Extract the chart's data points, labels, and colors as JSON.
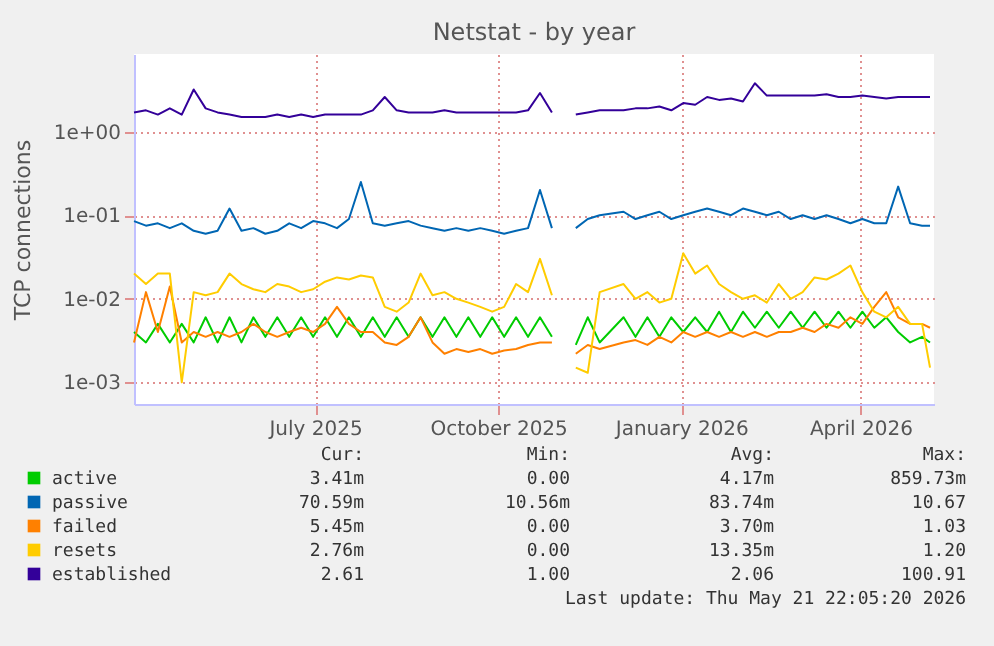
{
  "chart_data": {
    "type": "line",
    "title": "Netstat - by year",
    "ylabel": "TCP connections",
    "x": [
      "2025-04-01",
      "2025-04-07",
      "2025-04-13",
      "2025-04-19",
      "2025-04-25",
      "2025-05-01",
      "2025-05-07",
      "2025-05-13",
      "2025-05-19",
      "2025-05-25",
      "2025-05-31",
      "2025-06-06",
      "2025-06-12",
      "2025-06-18",
      "2025-06-24",
      "2025-06-30",
      "2025-07-06",
      "2025-07-12",
      "2025-07-18",
      "2025-07-24",
      "2025-07-30",
      "2025-08-05",
      "2025-08-11",
      "2025-08-17",
      "2025-08-23",
      "2025-08-29",
      "2025-09-04",
      "2025-09-10",
      "2025-09-16",
      "2025-09-22",
      "2025-09-28",
      "2025-10-04",
      "2025-10-10",
      "2025-10-16",
      "2025-10-22",
      "2025-10-28",
      "2025-11-03",
      "2025-11-09",
      "2025-11-15",
      "2025-11-21",
      "2025-12-03",
      "2025-12-09",
      "2025-12-15",
      "2025-12-21",
      "2025-12-27",
      "2026-01-02",
      "2026-01-08",
      "2026-01-14",
      "2026-01-20",
      "2026-01-26",
      "2026-02-01",
      "2026-02-07",
      "2026-02-13",
      "2026-02-19",
      "2026-02-25",
      "2026-03-03",
      "2026-03-09",
      "2026-03-15",
      "2026-03-21",
      "2026-03-27",
      "2026-04-02",
      "2026-04-08",
      "2026-04-14",
      "2026-04-20",
      "2026-04-26",
      "2026-05-02",
      "2026-05-06"
    ],
    "series": [
      {
        "name": "active",
        "color": "#00cc00",
        "values": [
          0.004,
          0.003,
          0.005,
          0.003,
          0.005,
          0.003,
          0.006,
          0.003,
          0.006,
          0.003,
          0.006,
          0.0035,
          0.006,
          0.0035,
          0.006,
          0.0035,
          0.006,
          0.0035,
          0.006,
          0.0035,
          0.006,
          0.0035,
          0.006,
          0.0035,
          0.006,
          0.0035,
          0.006,
          0.0035,
          0.006,
          0.0035,
          0.006,
          0.0035,
          0.006,
          0.0035,
          0.006,
          0.0035,
          null,
          0.0028,
          0.006,
          0.003,
          0.006,
          0.0035,
          0.006,
          0.0035,
          0.006,
          0.004,
          0.006,
          0.004,
          0.007,
          0.004,
          0.007,
          0.0045,
          0.007,
          0.0045,
          0.007,
          0.0045,
          0.007,
          0.0045,
          0.007,
          0.0045,
          0.007,
          0.0045,
          0.006,
          0.004,
          0.003,
          0.0035,
          0.003
        ]
      },
      {
        "name": "passive",
        "color": "#0066b3",
        "values": [
          0.085,
          0.075,
          0.08,
          0.07,
          0.08,
          0.065,
          0.06,
          0.065,
          0.12,
          0.065,
          0.07,
          0.06,
          0.065,
          0.08,
          0.07,
          0.085,
          0.08,
          0.07,
          0.09,
          0.25,
          0.08,
          0.075,
          0.08,
          0.085,
          0.075,
          0.07,
          0.065,
          0.07,
          0.065,
          0.07,
          0.065,
          0.06,
          0.065,
          0.07,
          0.2,
          0.07,
          null,
          0.07,
          0.09,
          0.1,
          0.11,
          0.09,
          0.1,
          0.11,
          0.09,
          0.1,
          0.11,
          0.12,
          0.11,
          0.1,
          0.12,
          0.11,
          0.1,
          0.11,
          0.09,
          0.1,
          0.09,
          0.1,
          0.09,
          0.08,
          0.09,
          0.08,
          0.08,
          0.22,
          0.08,
          0.075,
          0.075
        ]
      },
      {
        "name": "failed",
        "color": "#ff8000",
        "values": [
          0.003,
          0.012,
          0.004,
          0.014,
          0.003,
          0.004,
          0.0035,
          0.004,
          0.0035,
          0.004,
          0.005,
          0.004,
          0.0035,
          0.004,
          0.0045,
          0.004,
          0.005,
          0.008,
          0.005,
          0.004,
          0.004,
          0.003,
          0.0028,
          0.0035,
          0.006,
          0.003,
          0.0022,
          0.0025,
          0.0023,
          0.0025,
          0.0022,
          0.0024,
          0.0025,
          0.0028,
          0.003,
          0.003,
          null,
          0.0022,
          0.0028,
          0.0025,
          0.003,
          0.0032,
          0.0028,
          0.0035,
          0.003,
          0.004,
          0.0035,
          0.004,
          0.0035,
          0.004,
          0.0035,
          0.004,
          0.0035,
          0.004,
          0.004,
          0.0045,
          0.004,
          0.005,
          0.0045,
          0.006,
          0.005,
          0.008,
          0.012,
          0.006,
          0.005,
          0.005,
          0.0045
        ]
      },
      {
        "name": "resets",
        "color": "#ffcc00",
        "values": [
          0.02,
          0.015,
          0.02,
          0.02,
          0.001,
          0.012,
          0.011,
          0.012,
          0.02,
          0.015,
          0.013,
          0.012,
          0.015,
          0.014,
          0.012,
          0.013,
          0.016,
          0.018,
          0.017,
          0.019,
          0.018,
          0.008,
          0.007,
          0.009,
          0.02,
          0.011,
          0.012,
          0.01,
          0.009,
          0.008,
          0.007,
          0.008,
          0.015,
          0.012,
          0.03,
          0.011,
          null,
          0.0015,
          0.0013,
          0.012,
          0.015,
          0.01,
          0.012,
          0.009,
          0.01,
          0.035,
          0.02,
          0.025,
          0.015,
          0.012,
          0.01,
          0.011,
          0.009,
          0.015,
          0.01,
          0.012,
          0.018,
          0.017,
          0.02,
          0.025,
          0.012,
          0.007,
          0.006,
          0.008,
          0.005,
          0.005,
          0.0015
        ]
      },
      {
        "name": "established",
        "color": "#330099",
        "values": [
          1.7,
          1.8,
          1.6,
          1.9,
          1.6,
          3.2,
          1.9,
          1.7,
          1.6,
          1.5,
          1.5,
          1.5,
          1.6,
          1.5,
          1.6,
          1.5,
          1.6,
          1.6,
          1.6,
          1.6,
          1.8,
          2.6,
          1.8,
          1.7,
          1.7,
          1.7,
          1.8,
          1.7,
          1.7,
          1.7,
          1.7,
          1.7,
          1.7,
          1.8,
          2.9,
          1.7,
          null,
          1.6,
          1.7,
          1.8,
          1.8,
          1.9,
          1.9,
          2.0,
          1.8,
          2.2,
          2.1,
          2.6,
          2.4,
          2.5,
          2.3,
          3.8,
          2.7,
          2.7,
          2.7,
          2.7,
          2.7,
          2.8,
          2.6,
          2.6,
          2.7,
          2.6,
          2.5,
          2.6,
          2.6,
          2.6,
          2.6
        ]
      }
    ],
    "xlim": [
      "2025-04-01",
      "2026-05-08"
    ],
    "xticks": [
      {
        "value": "2025-07-01",
        "label": "July 2025"
      },
      {
        "value": "2025-10-01",
        "label": "October 2025"
      },
      {
        "value": "2026-01-01",
        "label": "January 2026"
      },
      {
        "value": "2026-04-01",
        "label": "April 2026"
      }
    ],
    "ylim": [
      0.00055,
      8.5
    ],
    "log": true,
    "yticks": [
      {
        "value": 0.001,
        "label": "1e-03"
      },
      {
        "value": 0.01,
        "label": "1e-02"
      },
      {
        "value": 0.1,
        "label": "1e-01"
      },
      {
        "value": 1,
        "label": "1e+00"
      }
    ],
    "grid": true,
    "legend": "bottom",
    "marker": "none",
    "line_style": "solid",
    "annotations": [
      "Cur:",
      "Min:",
      "Avg:",
      "Max:",
      "3.41m",
      "0.00",
      "4.17m",
      "859.73m",
      "70.59m",
      "10.56m",
      "83.74m",
      "10.67",
      "5.45m",
      "0.00",
      "3.70m",
      "1.03",
      "2.76m",
      "0.00",
      "13.35m",
      "1.20",
      "2.61",
      "1.00",
      "2.06",
      "100.91",
      "Last update: Thu May 21 22:05:20 2026"
    ]
  }
}
